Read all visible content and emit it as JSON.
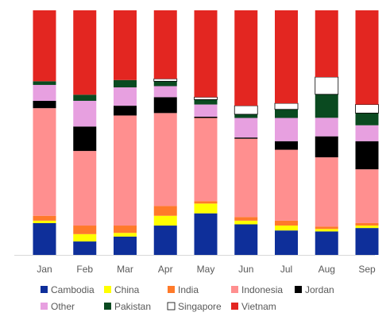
{
  "chart_data": {
    "type": "bar",
    "stacked": "percent",
    "title": "",
    "xlabel": "",
    "ylabel": "",
    "ylim": [
      0,
      100
    ],
    "grid": false,
    "legend_position": "bottom",
    "categories": [
      "Jan",
      "Feb",
      "Mar",
      "Apr",
      "May",
      "Jun",
      "Jul",
      "Aug",
      "Sep"
    ],
    "series": [
      {
        "name": "Cambodia",
        "color": "#0e2f9a",
        "values": [
          13,
          5.5,
          7.5,
          12,
          17,
          12.5,
          10,
          9.5,
          11
        ]
      },
      {
        "name": "China",
        "color": "#ffff00",
        "values": [
          1,
          3,
          1.5,
          4,
          4,
          1.5,
          2,
          1,
          1
        ]
      },
      {
        "name": "India",
        "color": "#ff7a2a",
        "values": [
          2,
          3.5,
          3,
          4,
          1,
          1.5,
          2,
          1,
          1
        ]
      },
      {
        "name": "Indonesia",
        "color": "#ff8f8f",
        "values": [
          44,
          30.5,
          45,
          38,
          34,
          32,
          29,
          28,
          22
        ]
      },
      {
        "name": "Jordan",
        "color": "#000000",
        "values": [
          3,
          10,
          4,
          6.5,
          0.5,
          0.5,
          3.5,
          8.5,
          11.5
        ]
      },
      {
        "name": "Other",
        "color": "#e7a0e0",
        "values": [
          6.5,
          10.5,
          7.5,
          4.5,
          5,
          8,
          9.5,
          7.5,
          6.5
        ]
      },
      {
        "name": "Pakistan",
        "color": "#0a4a20",
        "values": [
          1.5,
          2.5,
          3,
          2,
          2,
          1.5,
          3.5,
          9.5,
          5
        ]
      },
      {
        "name": "Singapore",
        "color": "#ffffff",
        "values": [
          0,
          0,
          0,
          1,
          1,
          3.5,
          2.5,
          7,
          3.5
        ]
      },
      {
        "name": "Vietnam",
        "color": "#e32621",
        "values": [
          29,
          34.5,
          28.5,
          28,
          35.5,
          39,
          38,
          27,
          38.5
        ]
      }
    ]
  }
}
